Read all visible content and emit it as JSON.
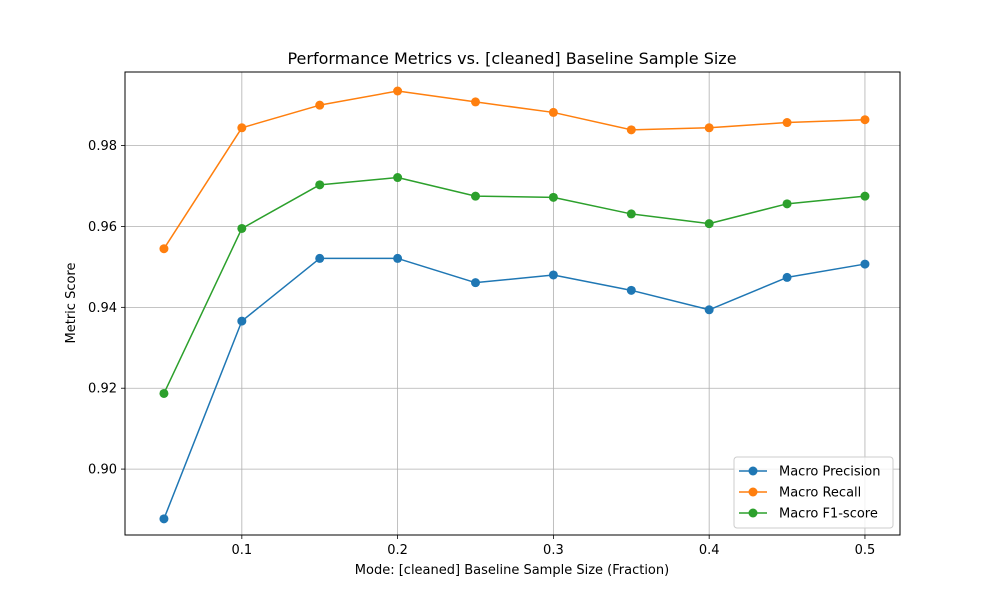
{
  "chart_data": {
    "type": "line",
    "title": "Performance Metrics vs. [cleaned] Baseline Sample Size",
    "xlabel": "Mode: [cleaned] Baseline Sample Size (Fraction)",
    "ylabel": "Metric Score",
    "x": [
      0.05,
      0.1,
      0.15,
      0.2,
      0.25,
      0.3,
      0.35,
      0.4,
      0.45,
      0.5
    ],
    "xlim": [
      0.025,
      0.5225
    ],
    "ylim": [
      0.8837,
      0.9982
    ],
    "xticks": [
      0.1,
      0.2,
      0.3,
      0.4,
      0.5
    ],
    "xtick_labels": [
      "0.1",
      "0.2",
      "0.3",
      "0.4",
      "0.5"
    ],
    "yticks": [
      0.9,
      0.92,
      0.94,
      0.96,
      0.98
    ],
    "ytick_labels": [
      "0.90",
      "0.92",
      "0.94",
      "0.96",
      "0.98"
    ],
    "grid": true,
    "legend_position": "lower-right",
    "series": [
      {
        "name": "Macro Precision",
        "color": "#1f77b4",
        "values": [
          0.8877,
          0.9366,
          0.9521,
          0.9521,
          0.9461,
          0.948,
          0.9442,
          0.9394,
          0.9474,
          0.9507
        ]
      },
      {
        "name": "Macro Recall",
        "color": "#ff7f0e",
        "values": [
          0.9545,
          0.9844,
          0.99,
          0.9935,
          0.9908,
          0.9882,
          0.9839,
          0.9844,
          0.9857,
          0.9864
        ]
      },
      {
        "name": "Macro F1-score",
        "color": "#2ca02c",
        "values": [
          0.9187,
          0.9595,
          0.9703,
          0.9721,
          0.9675,
          0.9672,
          0.9631,
          0.9607,
          0.9656,
          0.9675
        ]
      }
    ]
  }
}
